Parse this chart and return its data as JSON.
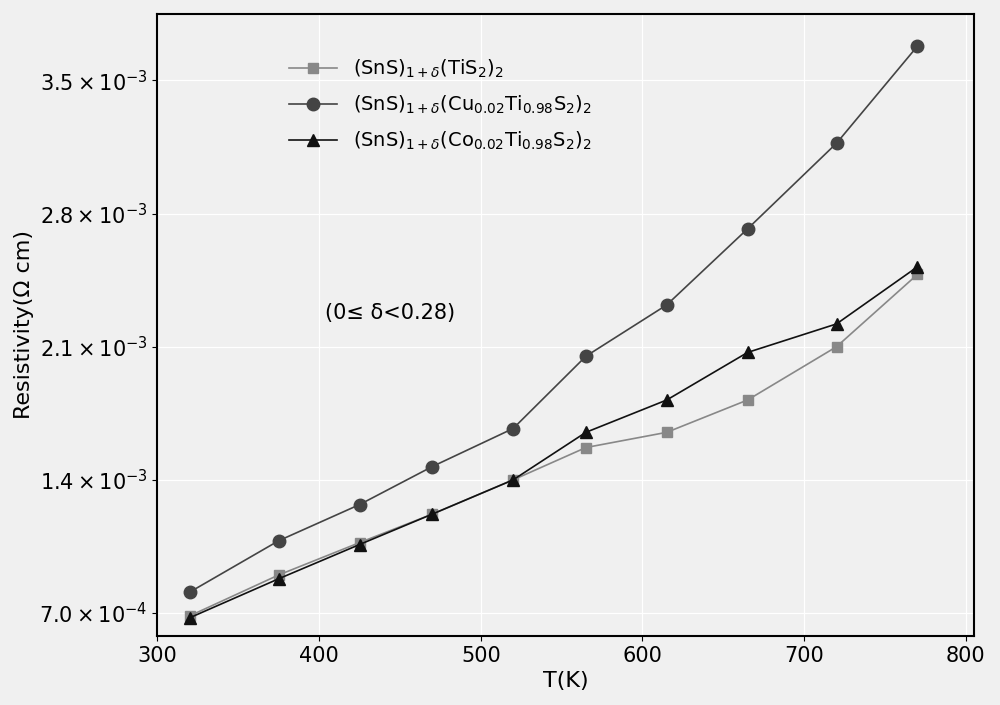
{
  "title": "",
  "xlabel": "T(K)",
  "ylabel": "Resistivity(Ω cm)",
  "xlim": [
    300,
    805
  ],
  "ylim": [
    0.00058,
    0.00385
  ],
  "xticks": [
    300,
    400,
    500,
    600,
    700,
    800
  ],
  "ytick_values": [
    0.0007,
    0.0014,
    0.0021,
    0.0028,
    0.0035
  ],
  "series": [
    {
      "label_main": "(SnS)",
      "label": "(SnS)$_{1+\\delta}$(TiS$_2$)$_2$",
      "color": "#888888",
      "marker": "s",
      "markersize": 7,
      "linewidth": 1.2,
      "x": [
        320,
        375,
        425,
        470,
        520,
        565,
        615,
        665,
        720,
        770
      ],
      "y": [
        0.000685,
        0.0009,
        0.00107,
        0.00122,
        0.0014,
        0.00157,
        0.00165,
        0.00182,
        0.0021,
        0.00248
      ]
    },
    {
      "label": "(SnS)$_{1+\\delta}$(Cu$_{0.02}$Ti$_{0.98}$S$_2$)$_2$",
      "color": "#444444",
      "marker": "o",
      "markersize": 9,
      "linewidth": 1.2,
      "x": [
        320,
        375,
        425,
        470,
        520,
        565,
        615,
        665,
        720,
        770
      ],
      "y": [
        0.00081,
        0.00108,
        0.00127,
        0.00147,
        0.00167,
        0.00205,
        0.00232,
        0.00272,
        0.00317,
        0.00368
      ]
    },
    {
      "label": "(SnS)$_{1+\\delta}$(Co$_{0.02}$Ti$_{0.98}$S$_2$)$_2$",
      "color": "#111111",
      "marker": "^",
      "markersize": 9,
      "linewidth": 1.2,
      "x": [
        320,
        375,
        425,
        470,
        520,
        565,
        615,
        665,
        720,
        770
      ],
      "y": [
        0.000675,
        0.00088,
        0.00106,
        0.00122,
        0.0014,
        0.00165,
        0.00182,
        0.00207,
        0.00222,
        0.00252
      ]
    }
  ],
  "legend_subtitle": "(0≤ δ<0.28)",
  "background_color": "#f0f0f0",
  "plot_bg_color": "#f0f0f0",
  "grid_color": "#ffffff",
  "font_size": 15,
  "legend_fontsize": 14
}
